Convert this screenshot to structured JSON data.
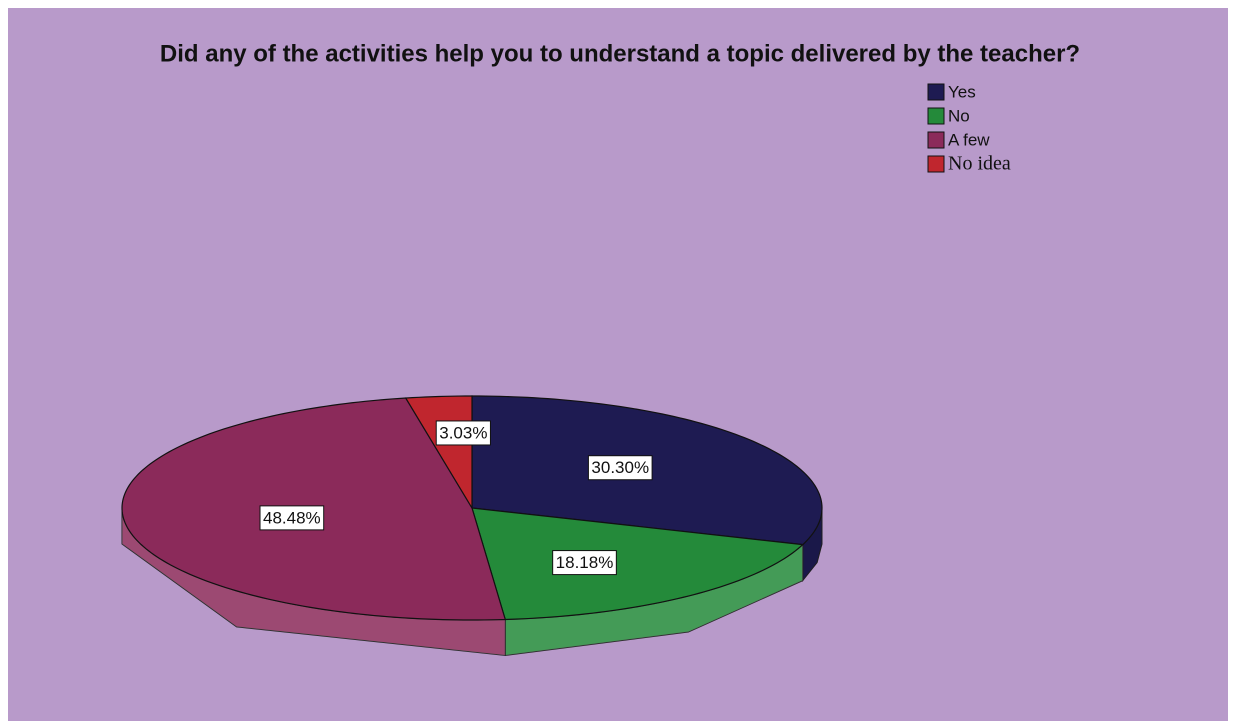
{
  "chart_data": {
    "type": "pie",
    "title": "Did any of the activities help you to understand a topic delivered by the teacher?",
    "categories": [
      "Yes",
      "No",
      "A few",
      "No idea"
    ],
    "values": [
      30.3,
      18.18,
      48.48,
      3.03
    ],
    "value_labels": [
      "30.30%",
      "18.18%",
      "48.48%",
      "3.03%"
    ],
    "colors": [
      "#1e1b52",
      "#248a3a",
      "#8b2a5a",
      "#c0262e"
    ],
    "legend": "top-right"
  }
}
